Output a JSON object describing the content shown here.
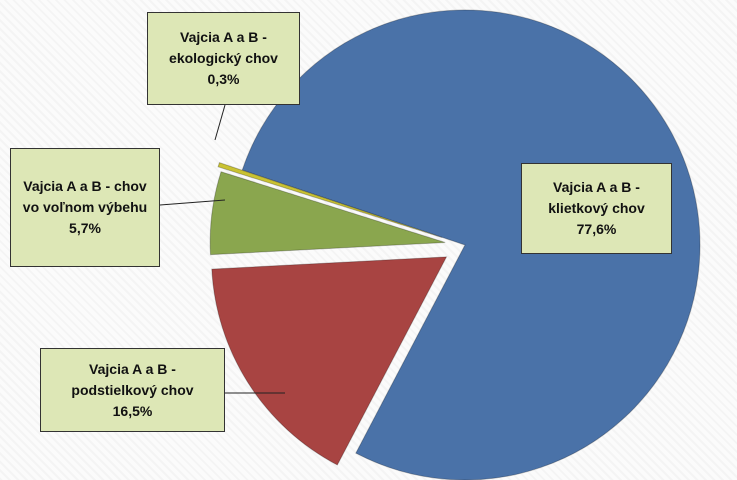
{
  "chart_data": {
    "type": "pie",
    "categories": [
      "Vajcia A a B - klietkový chov",
      "Vajcia A a B - podstielkový chov",
      "Vajcia A a B - chov vo voľnom výbehu",
      "Vajcia A a B - ekologický chov"
    ],
    "values": [
      77.6,
      16.5,
      5.7,
      0.3
    ],
    "value_labels": [
      "77,6%",
      "16,5%",
      "5,7%",
      "0,3%"
    ],
    "colors": [
      "#4a72a8",
      "#a84442",
      "#8aa64e",
      "#c9c232"
    ]
  }
}
